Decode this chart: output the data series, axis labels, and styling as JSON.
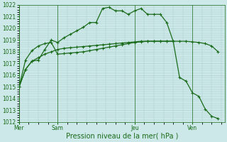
{
  "background_color": "#cce8e8",
  "grid_color": "#aacccc",
  "line_color": "#1a6b1a",
  "ylim": [
    1012,
    1022
  ],
  "yticks": [
    1012,
    1013,
    1014,
    1015,
    1016,
    1017,
    1018,
    1019,
    1020,
    1021,
    1022
  ],
  "xlabel": "Pression niveau de la mer( hPa )",
  "xlabel_fontsize": 7,
  "tick_fontsize": 5.5,
  "day_labels": [
    "Mer",
    "Sam",
    "Jeu",
    "Ven"
  ],
  "day_positions": [
    0,
    6,
    18,
    27
  ],
  "xlim": [
    0,
    32
  ],
  "line1_x": [
    0,
    1,
    2,
    3,
    4,
    5,
    6,
    7,
    8,
    9,
    10,
    11,
    12,
    13,
    14,
    15,
    16,
    17,
    18,
    19,
    20,
    21,
    22,
    23,
    24,
    25,
    26,
    27,
    28,
    29,
    30,
    31
  ],
  "line1_y": [
    1015.0,
    1016.5,
    1017.2,
    1017.3,
    1018.2,
    1019.0,
    1018.8,
    1019.2,
    1019.5,
    1019.8,
    1020.1,
    1020.5,
    1020.5,
    1021.7,
    1021.8,
    1021.5,
    1021.5,
    1021.2,
    1021.5,
    1021.7,
    1021.2,
    1021.2,
    1021.2,
    1020.5,
    1018.9,
    1015.8,
    1015.5,
    1014.5,
    1014.2,
    1013.1,
    1012.5,
    1012.3
  ],
  "line2_x": [
    0,
    1,
    2,
    3,
    4,
    5,
    6,
    7,
    8,
    9,
    10,
    11,
    12,
    13,
    14,
    15,
    16,
    17,
    18,
    19,
    20,
    21,
    22,
    23,
    24
  ],
  "line2_y": [
    1015.0,
    1017.3,
    1018.1,
    1018.5,
    1018.7,
    1018.8,
    1017.8,
    1017.85,
    1017.9,
    1017.95,
    1018.0,
    1018.1,
    1018.2,
    1018.3,
    1018.4,
    1018.5,
    1018.6,
    1018.7,
    1018.8,
    1018.85,
    1018.9,
    1018.9,
    1018.9,
    1018.9,
    1018.9
  ],
  "line3_x": [
    0,
    1,
    2,
    3,
    4,
    5,
    6,
    7,
    8,
    9,
    10,
    11,
    12,
    13,
    14,
    15,
    16,
    17,
    18,
    19,
    20,
    21,
    22,
    23,
    24,
    25,
    26,
    27,
    28,
    29,
    30,
    31
  ],
  "line3_y": [
    1015.0,
    1016.5,
    1017.2,
    1017.5,
    1017.8,
    1018.0,
    1018.2,
    1018.3,
    1018.35,
    1018.4,
    1018.45,
    1018.5,
    1018.55,
    1018.6,
    1018.65,
    1018.7,
    1018.75,
    1018.8,
    1018.85,
    1018.9,
    1018.9,
    1018.9,
    1018.9,
    1018.9,
    1018.9,
    1018.9,
    1018.9,
    1018.85,
    1018.8,
    1018.7,
    1018.5,
    1018.0
  ]
}
